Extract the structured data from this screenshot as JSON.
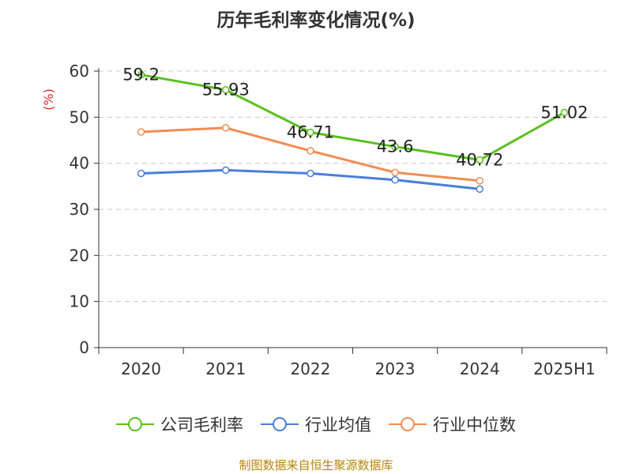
{
  "title": "历年毛利率变化情况(%)",
  "source": "制图数据来自恒生聚源数据库",
  "chart_data": {
    "type": "line",
    "title": "历年毛利率变化情况(%)",
    "ylabel": "(%)",
    "xlabel": "",
    "categories": [
      "2020",
      "2021",
      "2022",
      "2023",
      "2024",
      "2025H1"
    ],
    "ylim": [
      0,
      60
    ],
    "yticks": [
      0,
      10,
      20,
      30,
      40,
      50,
      60
    ],
    "grid": true,
    "legend_position": "bottom",
    "series": [
      {
        "name": "公司毛利率",
        "color": "#5ac11f",
        "values": [
          59.2,
          55.93,
          46.71,
          43.6,
          40.72,
          51.02
        ],
        "labels": [
          "59.2",
          "55.93",
          "46.71",
          "43.6",
          "40.72",
          "51.02"
        ]
      },
      {
        "name": "行业均值",
        "color": "#4a7fd9",
        "values": [
          37.8,
          38.5,
          37.8,
          36.4,
          34.4,
          null
        ]
      },
      {
        "name": "行业中位数",
        "color": "#f28c55",
        "values": [
          46.8,
          47.7,
          42.7,
          38.0,
          36.2,
          null
        ]
      }
    ]
  }
}
